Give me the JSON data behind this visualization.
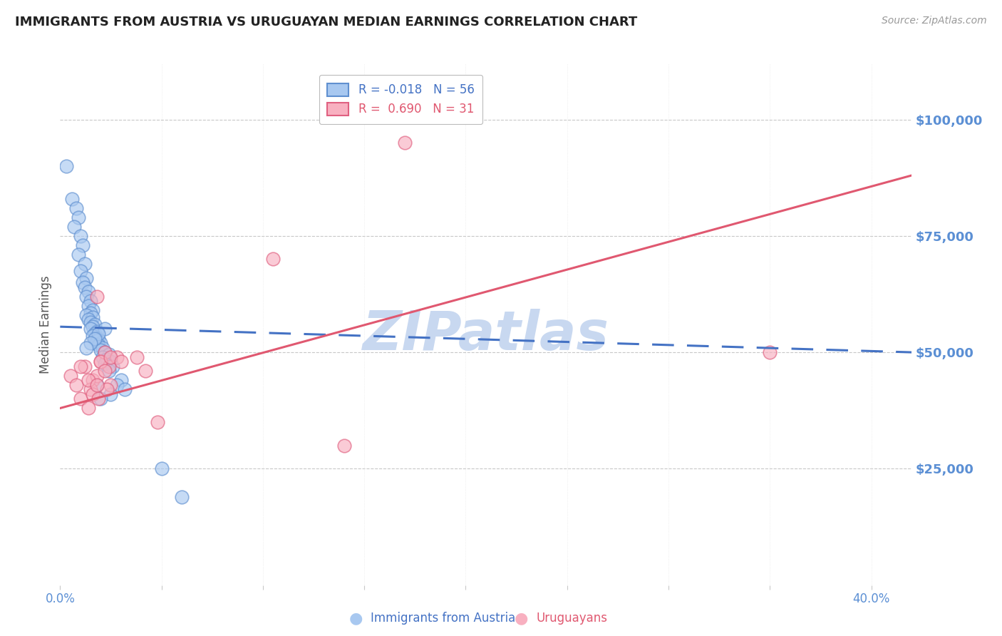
{
  "title": "IMMIGRANTS FROM AUSTRIA VS URUGUAYAN MEDIAN EARNINGS CORRELATION CHART",
  "source": "Source: ZipAtlas.com",
  "ylabel": "Median Earnings",
  "ytick_values": [
    25000,
    50000,
    75000,
    100000
  ],
  "ytick_labels": [
    "$25,000",
    "$50,000",
    "$75,000",
    "$100,000"
  ],
  "ylim": [
    0,
    112000
  ],
  "xlim": [
    0,
    0.42
  ],
  "legend_r1": "R = -0.018",
  "legend_n1": "N = 56",
  "legend_r2": "R =  0.690",
  "legend_n2": "N = 31",
  "legend_label1": "Immigrants from Austria",
  "legend_label2": "Uruguayans",
  "austria_fill": "#A8C8F0",
  "austria_edge": "#6090D0",
  "uruguayan_fill": "#F8B0C0",
  "uruguayan_edge": "#E06080",
  "austria_line_color": "#4472C4",
  "uruguayan_line_color": "#E05870",
  "watermark": "ZIPatlas",
  "watermark_color": "#C8D8F0",
  "austria_scatter_x": [
    0.003,
    0.006,
    0.008,
    0.009,
    0.007,
    0.01,
    0.011,
    0.009,
    0.012,
    0.01,
    0.013,
    0.011,
    0.012,
    0.014,
    0.013,
    0.015,
    0.014,
    0.016,
    0.015,
    0.013,
    0.016,
    0.014,
    0.015,
    0.017,
    0.016,
    0.015,
    0.018,
    0.017,
    0.016,
    0.019,
    0.018,
    0.02,
    0.019,
    0.021,
    0.02,
    0.022,
    0.024,
    0.021,
    0.023,
    0.025,
    0.022,
    0.026,
    0.024,
    0.03,
    0.028,
    0.032,
    0.025,
    0.02,
    0.018,
    0.05,
    0.06,
    0.022,
    0.019,
    0.017,
    0.015,
    0.013
  ],
  "austria_scatter_y": [
    90000,
    83000,
    81000,
    79000,
    77000,
    75000,
    73000,
    71000,
    69000,
    67500,
    66000,
    65000,
    64000,
    63000,
    62000,
    61000,
    60000,
    59000,
    58500,
    58000,
    57500,
    57000,
    56500,
    56000,
    55500,
    55000,
    54500,
    54000,
    53500,
    53000,
    52500,
    52000,
    51500,
    51000,
    50500,
    50000,
    49500,
    49000,
    48500,
    48000,
    47500,
    47000,
    46000,
    44000,
    43000,
    42000,
    41000,
    40000,
    43000,
    25000,
    19000,
    55000,
    54000,
    53000,
    52000,
    51000
  ],
  "uruguayan_scatter_x": [
    0.005,
    0.008,
    0.01,
    0.014,
    0.012,
    0.016,
    0.018,
    0.015,
    0.02,
    0.022,
    0.018,
    0.024,
    0.02,
    0.025,
    0.016,
    0.022,
    0.028,
    0.019,
    0.023,
    0.014,
    0.01,
    0.018,
    0.025,
    0.03,
    0.105,
    0.17,
    0.038,
    0.042,
    0.048,
    0.14,
    0.35
  ],
  "uruguayan_scatter_y": [
    45000,
    43000,
    40000,
    38000,
    47000,
    44000,
    62000,
    42000,
    48000,
    50000,
    45000,
    47000,
    48000,
    43000,
    41000,
    46000,
    49000,
    40000,
    42000,
    44000,
    47000,
    43000,
    49000,
    48000,
    70000,
    95000,
    49000,
    46000,
    35000,
    30000,
    50000
  ],
  "austria_trend_x": [
    0.0,
    0.42
  ],
  "austria_trend_y": [
    55500,
    50000
  ],
  "uruguayan_trend_x": [
    0.0,
    0.42
  ],
  "uruguayan_trend_y": [
    38000,
    88000
  ],
  "grid_color": "#C8C8C8",
  "title_color": "#222222",
  "tick_color": "#5B8FD4",
  "background_color": "#FFFFFF"
}
